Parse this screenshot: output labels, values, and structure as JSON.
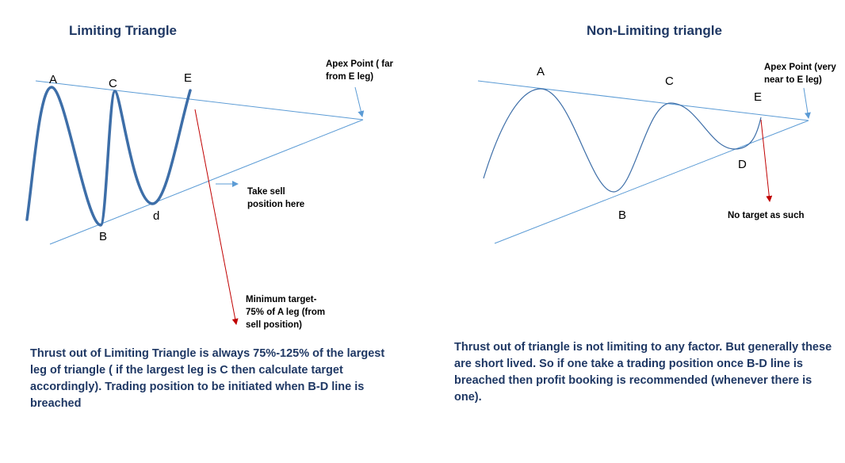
{
  "left": {
    "title": "Limiting Triangle",
    "points": {
      "A": "A",
      "B": "B",
      "C": "C",
      "d": "d",
      "E": "E"
    },
    "apex_note": [
      "Apex Point ( far",
      "from E leg)"
    ],
    "sell_note": [
      "Take sell",
      "position here"
    ],
    "target_note": [
      "Minimum target-",
      "75% of A leg (from",
      "sell position)"
    ],
    "paragraph": " Thrust out of Limiting Triangle is always 75%-125% of the largest leg of triangle ( if the largest leg is C then calculate target accordingly). Trading position to  be initiated when B-D line is breached"
  },
  "right": {
    "title": "Non-Limiting triangle",
    "points": {
      "A": "A",
      "B": "B",
      "C": "C",
      "D": "D",
      "E": "E"
    },
    "apex_note": [
      "Apex Point (very",
      "near to E leg)"
    ],
    "target_note": "No target as such",
    "paragraph": " Thrust out of triangle is not limiting to any factor. But generally these are short lived. So if one take a trading position once B-D line is breached then profit booking is recommended (whenever there is one)."
  },
  "colors": {
    "wave": "#3d6ea8",
    "line": "#5b9bd5",
    "target_arrow": "#c00000",
    "title": "#1f3864"
  }
}
